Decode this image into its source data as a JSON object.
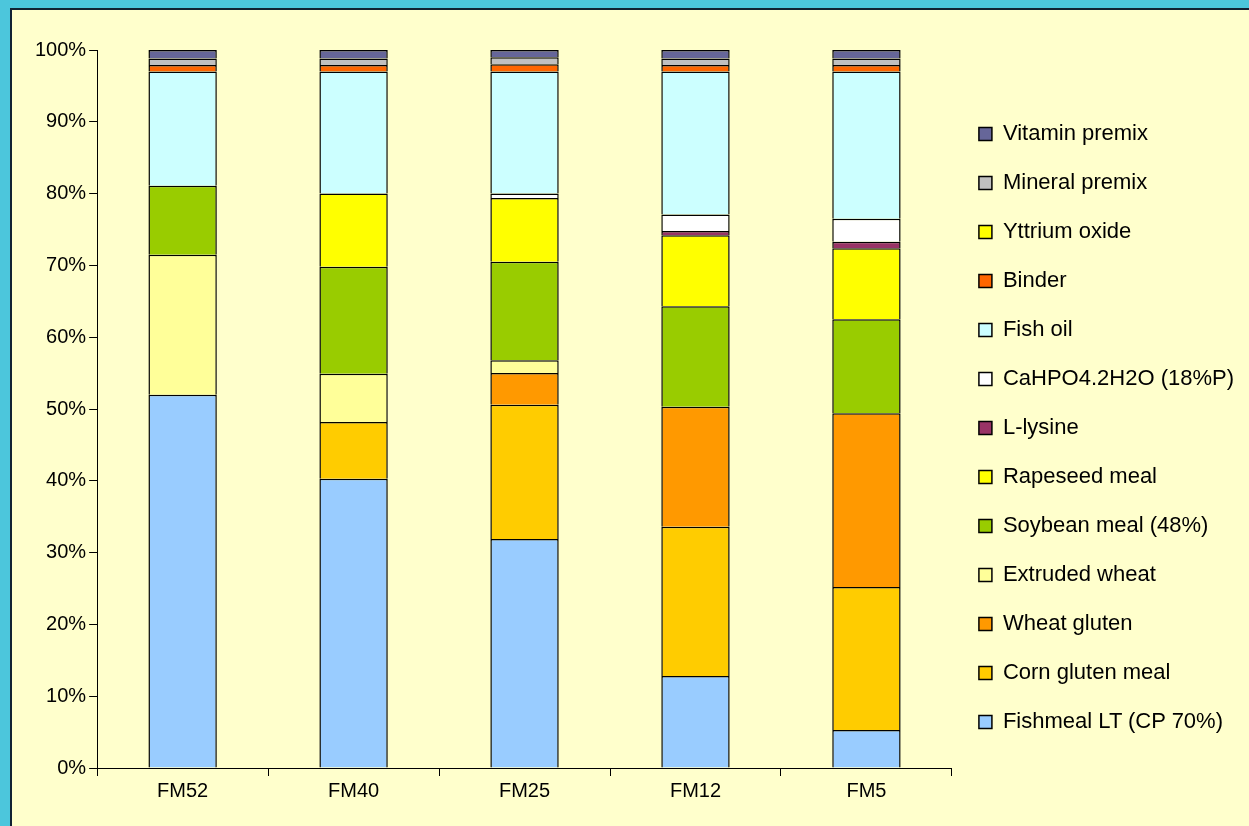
{
  "chart_data": {
    "type": "bar",
    "stacked": true,
    "categories": [
      "FM52",
      "FM40",
      "FM25",
      "FM12",
      "FM5"
    ],
    "ylim": [
      0,
      100
    ],
    "yticks": [
      {
        "value": 0,
        "label": "0%"
      },
      {
        "value": 10,
        "label": "10%"
      },
      {
        "value": 20,
        "label": "20%"
      },
      {
        "value": 30,
        "label": "30%"
      },
      {
        "value": 40,
        "label": "40%"
      },
      {
        "value": 50,
        "label": "50%"
      },
      {
        "value": 60,
        "label": "60%"
      },
      {
        "value": 70,
        "label": "70%"
      },
      {
        "value": 80,
        "label": "80%"
      },
      {
        "value": 90,
        "label": "90%"
      },
      {
        "value": 100,
        "label": "100%"
      }
    ],
    "grid": false,
    "legend": "right",
    "series": [
      {
        "name": "Fishmeal LT (CP 70%)",
        "color": "#99ccff",
        "values": [
          52.0,
          40.3,
          31.9,
          12.8,
          5.3
        ]
      },
      {
        "name": "Corn gluten meal",
        "color": "#ffcc00",
        "values": [
          0,
          7.9,
          18.7,
          20.8,
          19.9
        ]
      },
      {
        "name": "Wheat gluten",
        "color": "#ff9900",
        "values": [
          0,
          0,
          4.4,
          16.7,
          24.2
        ]
      },
      {
        "name": "Extruded wheat",
        "color": "#ffff99",
        "values": [
          19.5,
          6.7,
          1.8,
          0,
          0
        ]
      },
      {
        "name": "Soybean meal (48%)",
        "color": "#99cc00",
        "values": [
          9.6,
          14.9,
          13.7,
          14.0,
          13.1
        ]
      },
      {
        "name": "Rapeseed meal",
        "color": "#ffff00",
        "values": [
          0,
          10.2,
          8.9,
          9.9,
          9.9
        ]
      },
      {
        "name": "L-lysine",
        "color": "#993366",
        "values": [
          0,
          0,
          0,
          0.6,
          0.9
        ]
      },
      {
        "name": "CaHPO4.2H2O (18%P)",
        "color": "#ffffff",
        "values": [
          0,
          0,
          0.6,
          2.3,
          3.2
        ]
      },
      {
        "name": "Fish oil",
        "color": "#ccffff",
        "values": [
          15.9,
          17.0,
          17.0,
          19.9,
          20.5
        ]
      },
      {
        "name": "Binder",
        "color": "#ff6600",
        "values": [
          0.9,
          0.9,
          1.0,
          0.9,
          0.9
        ]
      },
      {
        "name": "Yttrium oxide",
        "color": "#ffff00",
        "values": [
          null,
          null,
          null,
          null,
          null
        ]
      },
      {
        "name": "Mineral premix",
        "color": "#c0c0c0",
        "values": [
          0.9,
          0.9,
          1.0,
          0.9,
          0.9
        ]
      },
      {
        "name": "Vitamin premix",
        "color": "#666699",
        "values": [
          1.2,
          1.2,
          1.0,
          1.2,
          1.2
        ]
      }
    ]
  }
}
